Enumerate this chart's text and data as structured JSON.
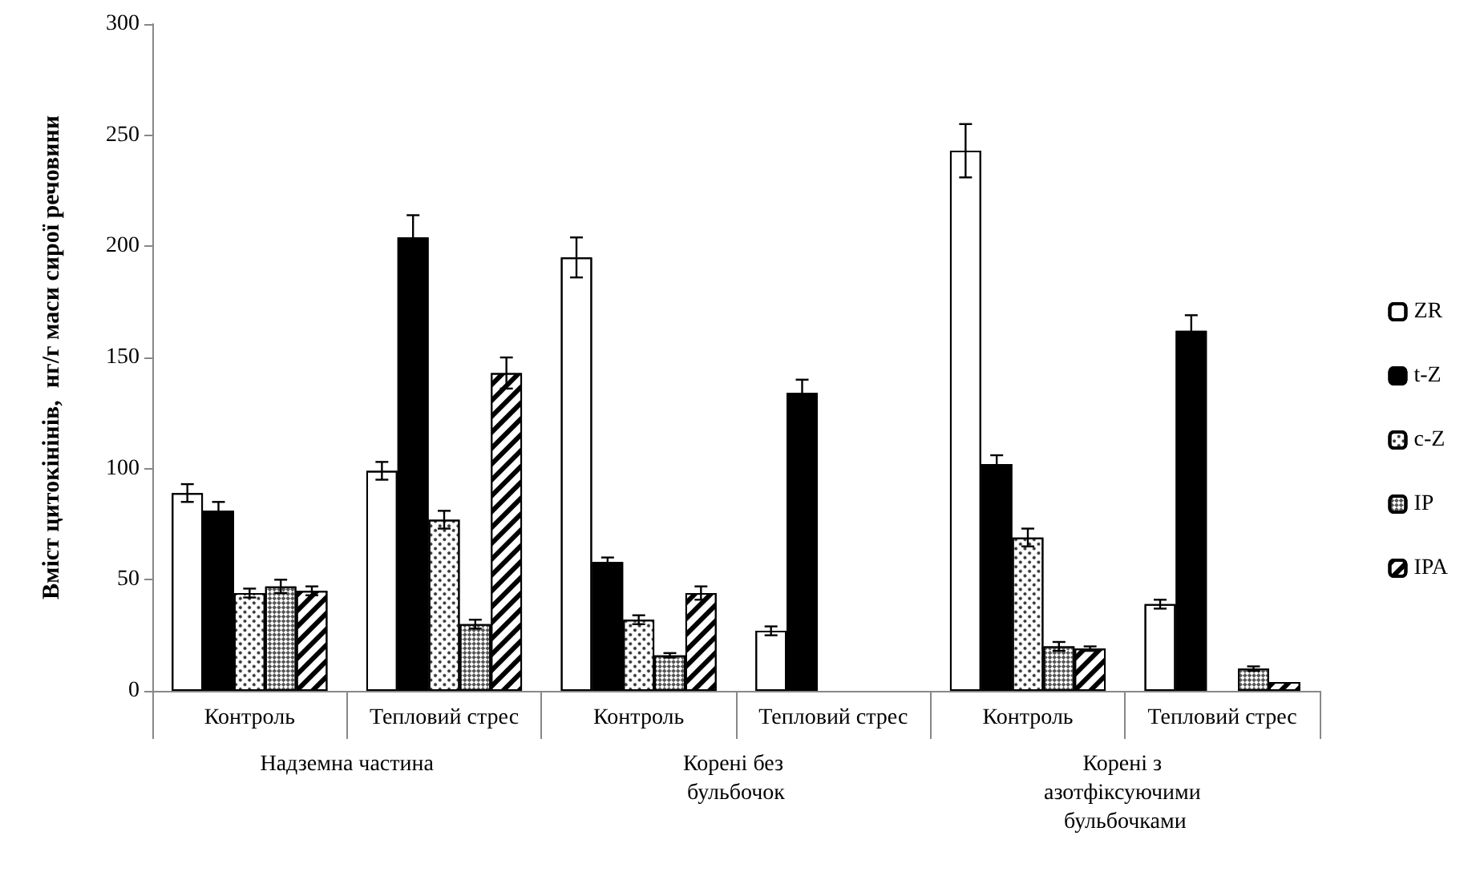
{
  "chart_data": {
    "type": "bar",
    "ylabel": "Вміст цитокінінів,  нг/г маси сирої речовини",
    "categories": [
      "Контроль",
      "Тепловий стрес",
      "Контроль",
      "Тепловий стрес",
      "Контроль",
      "Тепловий стрес"
    ],
    "annotations": [
      "Надземна частина",
      "Корені без бульбочок",
      "Корені з азотфіксуючими бульбочками"
    ],
    "series": [
      {
        "name": "ZR",
        "color": "#ffffff",
        "values": [
          89,
          99,
          195,
          27,
          243,
          39
        ],
        "errors": [
          4,
          4,
          9,
          2,
          12,
          2
        ]
      },
      {
        "name": "t-Z",
        "color": "#000000",
        "values": [
          81,
          204,
          58,
          134,
          102,
          162
        ],
        "errors": [
          4,
          10,
          2,
          6,
          4,
          7
        ]
      },
      {
        "name": "c-Z",
        "color": "#ffffff",
        "values": [
          44,
          77,
          32,
          null,
          69,
          null
        ],
        "errors": [
          2,
          4,
          2,
          null,
          4,
          null
        ]
      },
      {
        "name": "IP",
        "color": "#ffffff",
        "values": [
          47,
          30,
          16,
          null,
          20,
          10
        ],
        "errors": [
          3,
          2,
          1,
          null,
          2,
          1
        ]
      },
      {
        "name": "IPA",
        "color": "#ffffff",
        "values": [
          45,
          143,
          44,
          null,
          19,
          4
        ],
        "errors": [
          2,
          7,
          3,
          null,
          1,
          null
        ]
      }
    ],
    "ylim": [
      0,
      300
    ],
    "yticks": [
      0,
      50,
      100,
      150,
      200,
      250,
      300
    ],
    "grid": false,
    "legend": "right"
  }
}
